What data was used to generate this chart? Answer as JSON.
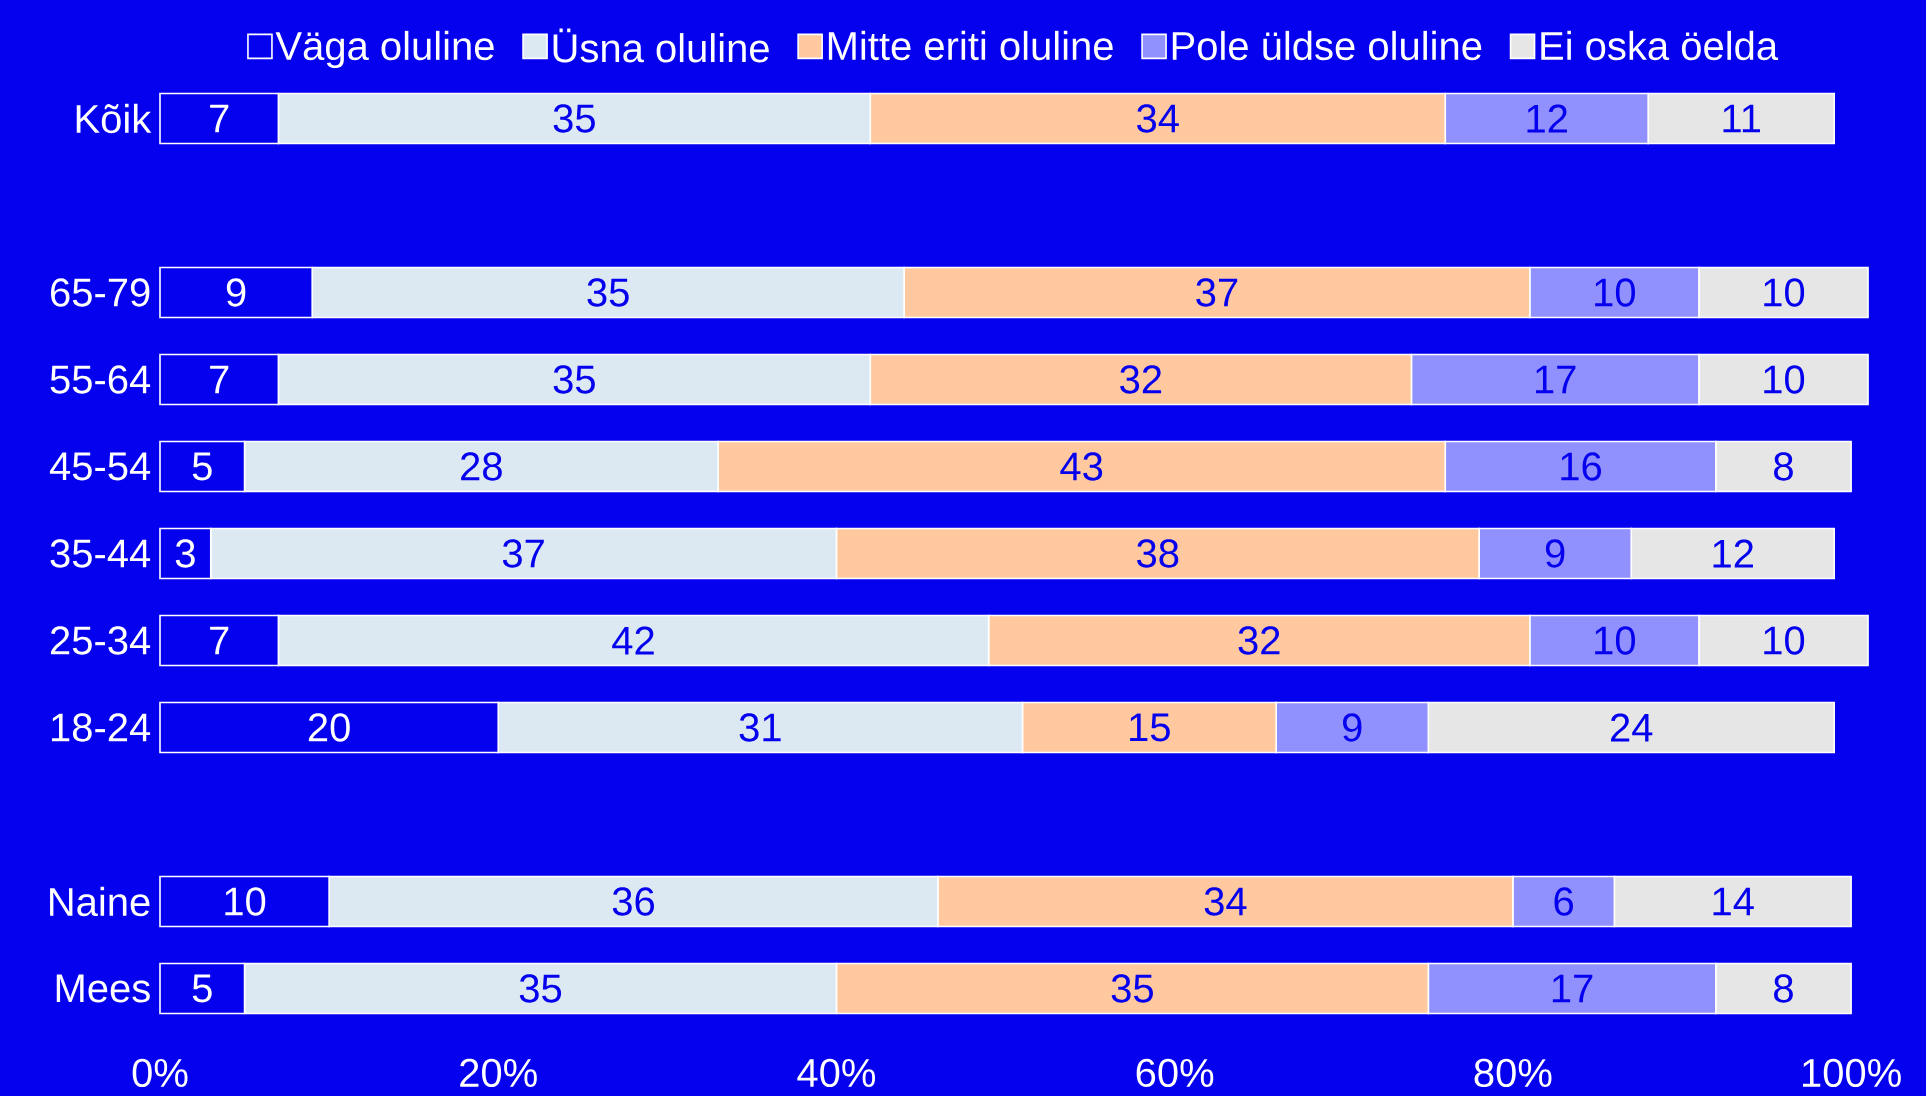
{
  "chart_data": {
    "type": "bar",
    "orientation": "horizontal",
    "stacked": true,
    "data_labels": true,
    "legend": "top",
    "grid": false,
    "categories": [
      "Kõik",
      null,
      "65-79",
      "55-64",
      "45-54",
      "35-44",
      "25-34",
      "18-24",
      null,
      "Naine",
      "Mees"
    ],
    "xlim": [
      0,
      101
    ],
    "xticks": [
      {
        "value": 0,
        "label": "0%"
      },
      {
        "value": 20,
        "label": "20%"
      },
      {
        "value": 40,
        "label": "40%"
      },
      {
        "value": 60,
        "label": "60%"
      },
      {
        "value": 80,
        "label": "80%"
      },
      {
        "value": 100,
        "label": "100%"
      }
    ],
    "series": [
      {
        "name": "Väga oluline",
        "color": "#0500ee",
        "values": [
          7,
          null,
          9,
          7,
          5,
          3,
          7,
          20,
          null,
          10,
          5
        ]
      },
      {
        "name": "Üsna oluline",
        "color": "#dce9f3",
        "values": [
          35,
          null,
          35,
          35,
          28,
          37,
          42,
          31,
          null,
          36,
          35
        ]
      },
      {
        "name": "Mitte eriti oluline",
        "color": "#ffc89e",
        "values": [
          34,
          null,
          37,
          32,
          43,
          38,
          32,
          15,
          null,
          34,
          35
        ]
      },
      {
        "name": "Pole üldse oluline",
        "color": "#9090ff",
        "values": [
          12,
          null,
          10,
          17,
          16,
          9,
          10,
          9,
          null,
          6,
          17
        ]
      },
      {
        "name": "Ei oska öelda",
        "color": "#e6e6e6",
        "values": [
          11,
          null,
          10,
          10,
          8,
          12,
          10,
          24,
          null,
          14,
          8
        ]
      }
    ]
  }
}
